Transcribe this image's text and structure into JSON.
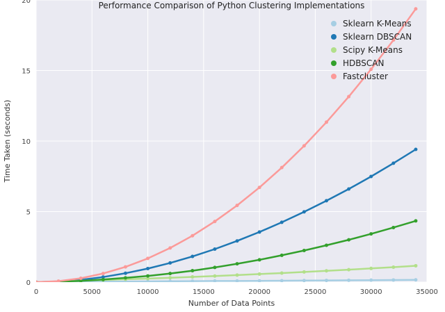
{
  "chart_data": {
    "type": "line",
    "title": "Performance Comparison of Python Clustering Implementations",
    "xlabel": "Number of Data Points",
    "ylabel": "Time Taken (seconds)",
    "xlim": [
      0,
      35000
    ],
    "ylim": [
      0,
      20
    ],
    "xticks": [
      0,
      5000,
      10000,
      15000,
      20000,
      25000,
      30000,
      35000
    ],
    "xtick_labels": [
      "0",
      "5000",
      "10000",
      "15000",
      "20000",
      "25000",
      "30000",
      "35000"
    ],
    "yticks": [
      0,
      5,
      10,
      15,
      20
    ],
    "ytick_labels": [
      "0",
      "5",
      "10",
      "15",
      "20"
    ],
    "grid": true,
    "legend_position": "top-right",
    "x": [
      0,
      2000,
      4000,
      6000,
      8000,
      10000,
      12000,
      14000,
      16000,
      18000,
      20000,
      22000,
      24000,
      26000,
      28000,
      30000,
      32000,
      34000
    ],
    "series": [
      {
        "name": "Sklearn K-Means",
        "color": "#a6cee3",
        "values": [
          0.0,
          0.01,
          0.02,
          0.03,
          0.04,
          0.05,
          0.06,
          0.07,
          0.08,
          0.08,
          0.09,
          0.1,
          0.11,
          0.12,
          0.13,
          0.14,
          0.15,
          0.16
        ]
      },
      {
        "name": "Sklearn DBSCAN",
        "color": "#1f78b4",
        "values": [
          0.0,
          0.05,
          0.16,
          0.36,
          0.63,
          0.96,
          1.36,
          1.82,
          2.34,
          2.92,
          3.55,
          4.24,
          4.98,
          5.77,
          6.6,
          7.49,
          8.43,
          9.41
        ]
      },
      {
        "name": "Scipy K-Means",
        "color": "#b2df8a",
        "values": [
          0.0,
          0.05,
          0.1,
          0.15,
          0.2,
          0.25,
          0.31,
          0.37,
          0.43,
          0.5,
          0.57,
          0.64,
          0.72,
          0.8,
          0.88,
          0.97,
          1.06,
          1.16
        ]
      },
      {
        "name": "HDBSCAN",
        "color": "#33a02c",
        "values": [
          0.0,
          0.03,
          0.09,
          0.18,
          0.3,
          0.44,
          0.61,
          0.81,
          1.04,
          1.3,
          1.58,
          1.9,
          2.24,
          2.61,
          3.0,
          3.42,
          3.87,
          4.34
        ]
      },
      {
        "name": "Fastcluster",
        "color": "#fb9a99",
        "values": [
          0.0,
          0.07,
          0.27,
          0.61,
          1.08,
          1.68,
          2.42,
          3.29,
          4.3,
          5.44,
          6.71,
          8.12,
          9.66,
          11.34,
          13.15,
          15.09,
          17.16,
          19.37
        ]
      }
    ]
  }
}
